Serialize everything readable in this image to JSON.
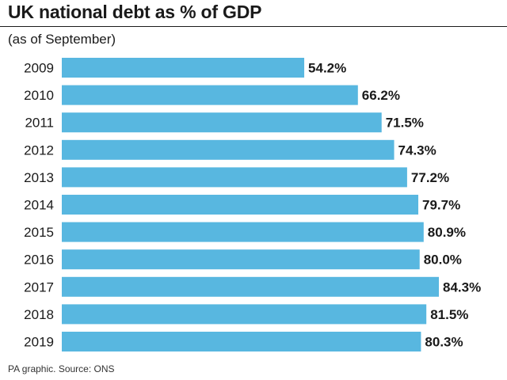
{
  "header": {
    "title": "UK national debt as % of GDP",
    "subtitle": "(as of September)"
  },
  "footer": {
    "source": "PA graphic. Source: ONS"
  },
  "colors": {
    "bar": "#58b7e0",
    "text": "#1a1a1a"
  },
  "chart_data": {
    "type": "bar",
    "orientation": "horizontal",
    "title": "UK national debt as % of GDP",
    "subtitle": "(as of September)",
    "categories": [
      "2009",
      "2010",
      "2011",
      "2012",
      "2013",
      "2014",
      "2015",
      "2016",
      "2017",
      "2018",
      "2019"
    ],
    "values": [
      54.2,
      66.2,
      71.5,
      74.3,
      77.2,
      79.7,
      80.9,
      80.0,
      84.3,
      81.5,
      80.3
    ],
    "value_labels": [
      "54.2%",
      "66.2%",
      "71.5%",
      "74.3%",
      "77.2%",
      "79.7%",
      "80.9%",
      "80.0%",
      "84.3%",
      "81.5%",
      "80.3%"
    ],
    "xlim": [
      0,
      84.3
    ],
    "grid": false,
    "legend": "none"
  }
}
